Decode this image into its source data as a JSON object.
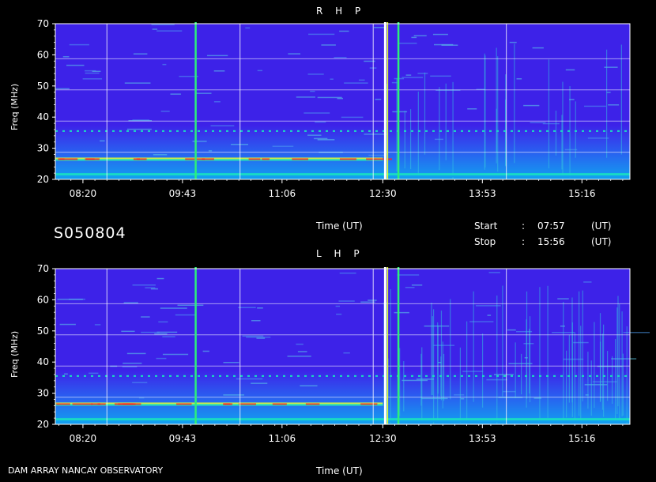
{
  "header": {
    "station_code": "S050804",
    "time_label": "Time (UT)",
    "start_label": "Start",
    "stop_label": "Stop",
    "separator": ":",
    "start_time": "07:57",
    "stop_time": "15:56",
    "ut_unit": "(UT)"
  },
  "footer": {
    "observatory": "DAM ARRAY   NANCAY OBSERVATORY",
    "time_label": "Time (UT)"
  },
  "colors": {
    "background": "#000000",
    "spectrogram_base": "#3d22e8",
    "band_low": "#12a0f0",
    "band_mid": "#19e0c0",
    "band_high": "#e8ff30",
    "burst_red": "#ff2020",
    "grid": "#ffffff"
  },
  "chart_data": [
    {
      "type": "heatmap",
      "title": "R H P",
      "ylabel": "Freq (MHz)",
      "xlabel": "Time (UT)",
      "ylim": [
        20,
        70
      ],
      "yticks": [
        20,
        30,
        40,
        50,
        60,
        70
      ],
      "xticks": [
        "08:20",
        "09:43",
        "11:06",
        "12:30",
        "13:53",
        "15:16"
      ],
      "x_range_minutes": [
        477,
        956
      ],
      "xtick_minutes": [
        500,
        583,
        666,
        750,
        833,
        916
      ],
      "bursts_minutes": [
        594,
        752,
        763
      ],
      "bright_bands_mhz": [
        21,
        22,
        26.5,
        27,
        35.5
      ],
      "grid": true
    },
    {
      "type": "heatmap",
      "title": "L H P",
      "ylabel": "Freq (MHz)",
      "xlabel": "Time (UT)",
      "ylim": [
        20,
        70
      ],
      "yticks": [
        20,
        30,
        40,
        50,
        60,
        70
      ],
      "xticks": [
        "08:20",
        "09:43",
        "11:06",
        "12:30",
        "13:53",
        "15:16"
      ],
      "x_range_minutes": [
        477,
        956
      ],
      "xtick_minutes": [
        500,
        583,
        666,
        750,
        833,
        916
      ],
      "bursts_minutes": [
        594,
        752,
        763
      ],
      "bright_bands_mhz": [
        21,
        22,
        26.5,
        27,
        35.5
      ],
      "grid": true
    }
  ]
}
